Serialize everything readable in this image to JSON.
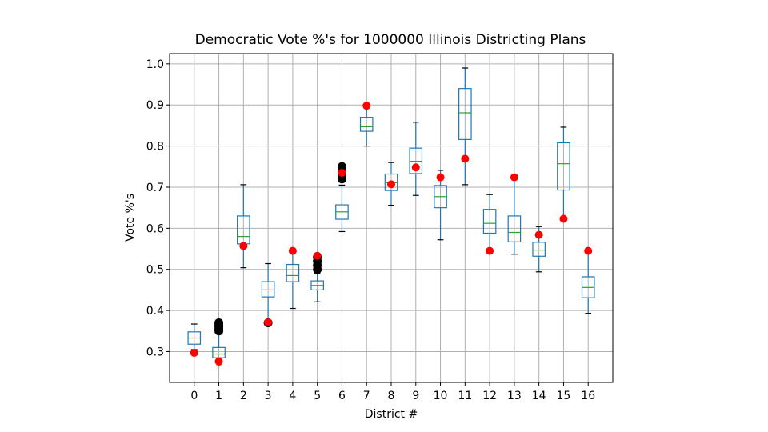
{
  "chart_data": {
    "type": "box",
    "title": "Democratic Vote %'s for 1000000 Illinois Districting Plans",
    "xlabel": "District #",
    "ylabel": "Vote %'s",
    "categories": [
      "0",
      "1",
      "2",
      "3",
      "4",
      "5",
      "6",
      "7",
      "8",
      "9",
      "10",
      "11",
      "12",
      "13",
      "14",
      "15",
      "16"
    ],
    "ylim": [
      0.225,
      1.025
    ],
    "yticks": [
      0.3,
      0.4,
      0.5,
      0.6,
      0.7,
      0.8,
      0.9,
      1.0
    ],
    "ytick_labels": [
      "0.3",
      "0.4",
      "0.5",
      "0.6",
      "0.7",
      "0.8",
      "0.9",
      "1.0"
    ],
    "grid": true,
    "boxes": [
      {
        "district": "0",
        "whisker_low": 0.305,
        "q1": 0.318,
        "median": 0.333,
        "q3": 0.348,
        "whisker_high": 0.367,
        "outliers": []
      },
      {
        "district": "1",
        "whisker_low": 0.265,
        "q1": 0.285,
        "median": 0.294,
        "q3": 0.31,
        "whisker_high": 0.345,
        "outliers": [
          0.35,
          0.355,
          0.36,
          0.365,
          0.37
        ]
      },
      {
        "district": "2",
        "whisker_low": 0.504,
        "q1": 0.562,
        "median": 0.58,
        "q3": 0.63,
        "whisker_high": 0.706,
        "outliers": []
      },
      {
        "district": "3",
        "whisker_low": 0.375,
        "q1": 0.433,
        "median": 0.45,
        "q3": 0.47,
        "whisker_high": 0.514,
        "outliers": [
          0.37
        ]
      },
      {
        "district": "4",
        "whisker_low": 0.405,
        "q1": 0.47,
        "median": 0.485,
        "q3": 0.512,
        "whisker_high": 0.545,
        "outliers": []
      },
      {
        "district": "5",
        "whisker_low": 0.421,
        "q1": 0.45,
        "median": 0.461,
        "q3": 0.472,
        "whisker_high": 0.49,
        "outliers": [
          0.5,
          0.51,
          0.52,
          0.53
        ]
      },
      {
        "district": "6",
        "whisker_low": 0.592,
        "q1": 0.622,
        "median": 0.64,
        "q3": 0.657,
        "whisker_high": 0.705,
        "outliers": [
          0.72,
          0.73,
          0.74,
          0.75
        ]
      },
      {
        "district": "7",
        "whisker_low": 0.8,
        "q1": 0.836,
        "median": 0.847,
        "q3": 0.87,
        "whisker_high": 0.895,
        "outliers": []
      },
      {
        "district": "8",
        "whisker_low": 0.656,
        "q1": 0.692,
        "median": 0.711,
        "q3": 0.732,
        "whisker_high": 0.76,
        "outliers": []
      },
      {
        "district": "9",
        "whisker_low": 0.68,
        "q1": 0.733,
        "median": 0.763,
        "q3": 0.795,
        "whisker_high": 0.858,
        "outliers": []
      },
      {
        "district": "10",
        "whisker_low": 0.572,
        "q1": 0.65,
        "median": 0.677,
        "q3": 0.704,
        "whisker_high": 0.741,
        "outliers": []
      },
      {
        "district": "11",
        "whisker_low": 0.706,
        "q1": 0.816,
        "median": 0.881,
        "q3": 0.94,
        "whisker_high": 0.99,
        "outliers": []
      },
      {
        "district": "12",
        "whisker_low": 0.545,
        "q1": 0.588,
        "median": 0.612,
        "q3": 0.646,
        "whisker_high": 0.682,
        "outliers": []
      },
      {
        "district": "13",
        "whisker_low": 0.537,
        "q1": 0.567,
        "median": 0.59,
        "q3": 0.63,
        "whisker_high": 0.722,
        "outliers": []
      },
      {
        "district": "14",
        "whisker_low": 0.494,
        "q1": 0.532,
        "median": 0.547,
        "q3": 0.566,
        "whisker_high": 0.604,
        "outliers": []
      },
      {
        "district": "15",
        "whisker_low": 0.622,
        "q1": 0.693,
        "median": 0.757,
        "q3": 0.808,
        "whisker_high": 0.846,
        "outliers": []
      },
      {
        "district": "16",
        "whisker_low": 0.393,
        "q1": 0.431,
        "median": 0.456,
        "q3": 0.482,
        "whisker_high": 0.54,
        "outliers": []
      }
    ],
    "actual": [
      0.297,
      0.276,
      0.557,
      0.371,
      0.545,
      0.533,
      0.735,
      0.898,
      0.707,
      0.748,
      0.724,
      0.769,
      0.545,
      0.724,
      0.584,
      0.623,
      0.545
    ],
    "colors": {
      "box": "#1f77b4",
      "median": "#2ca02c",
      "whisker_cap": "#000000",
      "outlier": "#000000",
      "actual_point": "#ff0000",
      "grid": "#b0b0b0"
    }
  }
}
